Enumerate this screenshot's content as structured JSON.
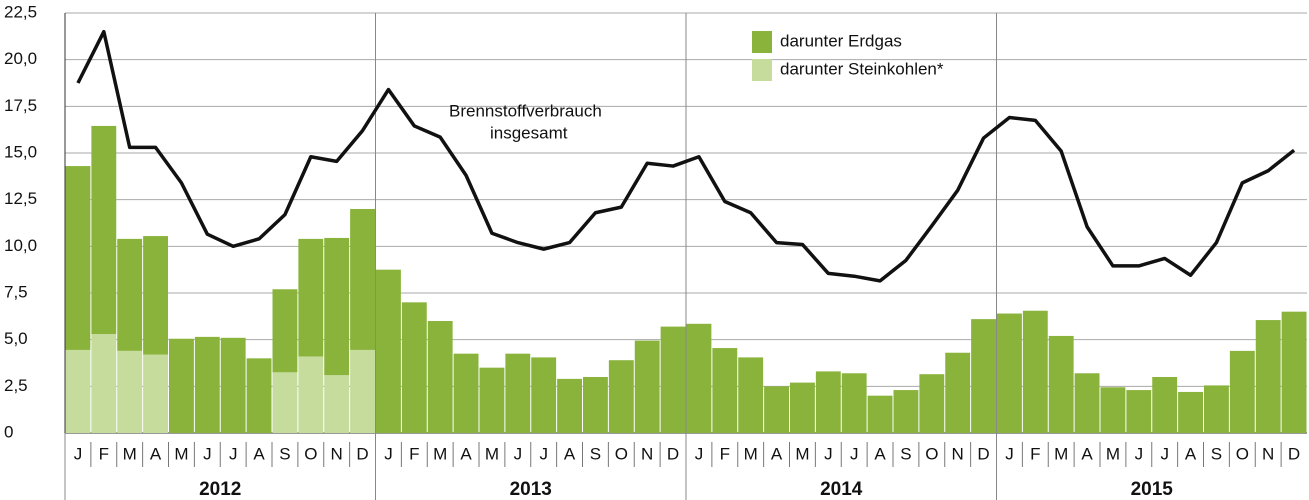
{
  "chart_data": {
    "type": "bar",
    "stacked": true,
    "categories": [
      "J",
      "F",
      "M",
      "A",
      "M",
      "J",
      "J",
      "A",
      "S",
      "O",
      "N",
      "D",
      "J",
      "F",
      "M",
      "A",
      "M",
      "J",
      "J",
      "A",
      "S",
      "O",
      "N",
      "D",
      "J",
      "F",
      "M",
      "A",
      "M",
      "J",
      "J",
      "A",
      "S",
      "O",
      "N",
      "D",
      "J",
      "F",
      "M",
      "A",
      "M",
      "J",
      "J",
      "A",
      "S",
      "O",
      "N",
      "D"
    ],
    "groups": [
      "2012",
      "2013",
      "2014",
      "2015"
    ],
    "series": [
      {
        "name": "darunter Erdgas",
        "color": "#8ab33c",
        "values": [
          9.85,
          11.15,
          6.0,
          6.35,
          5.05,
          5.15,
          5.1,
          4.0,
          4.45,
          6.3,
          7.35,
          7.55,
          8.75,
          7.0,
          6.0,
          4.25,
          3.5,
          4.25,
          4.05,
          2.9,
          3.0,
          3.9,
          4.95,
          5.7,
          5.85,
          4.55,
          4.05,
          2.5,
          2.7,
          3.3,
          3.2,
          2.0,
          2.3,
          3.15,
          4.3,
          6.1,
          6.4,
          6.55,
          5.2,
          3.2,
          2.45,
          2.3,
          3.0,
          2.2,
          2.55,
          4.4,
          6.05,
          6.5
        ]
      },
      {
        "name": "darunter Steinkohlen*",
        "color": "#c5dc9c",
        "values": [
          4.45,
          5.3,
          4.4,
          4.2,
          null,
          null,
          null,
          null,
          3.25,
          4.1,
          3.1,
          4.45,
          null,
          null,
          null,
          null,
          null,
          null,
          null,
          null,
          null,
          null,
          null,
          null,
          null,
          null,
          null,
          null,
          null,
          null,
          null,
          null,
          null,
          null,
          null,
          null,
          null,
          null,
          null,
          null,
          null,
          null,
          null,
          null,
          null,
          null,
          null,
          null
        ]
      },
      {
        "type": "line",
        "color": "#111111",
        "label": [
          "Brennstoffverbrauch",
          "insgesamt"
        ],
        "values": [
          18.75,
          21.5,
          15.3,
          15.3,
          13.4,
          10.65,
          10.0,
          10.4,
          11.7,
          14.8,
          14.55,
          16.2,
          18.4,
          16.45,
          15.85,
          13.8,
          10.7,
          10.2,
          9.85,
          10.2,
          11.8,
          12.1,
          14.45,
          14.3,
          14.8,
          12.4,
          11.8,
          10.2,
          10.1,
          8.55,
          8.4,
          8.15,
          9.25,
          11.1,
          13.0,
          15.8,
          16.9,
          16.75,
          15.1,
          11.05,
          8.95,
          8.95,
          9.35,
          8.45,
          10.2,
          13.4,
          14.05,
          15.15
        ]
      }
    ],
    "ylim": [
      0,
      22.5
    ],
    "yticks": [
      0,
      {
        "value": 2.5,
        "label": "2,5"
      },
      {
        "value": 5,
        "label": "5,0"
      },
      {
        "value": 7.5,
        "label": "7,5"
      },
      {
        "value": 10,
        "label": "10,0"
      },
      {
        "value": 12.5,
        "label": "12,5"
      },
      {
        "value": 15,
        "label": "15,0"
      },
      {
        "value": 17.5,
        "label": "17,5"
      },
      {
        "value": 20,
        "label": "20,0"
      },
      {
        "value": 22.5,
        "label": "22,5"
      }
    ],
    "grid": true,
    "legend": "top"
  }
}
